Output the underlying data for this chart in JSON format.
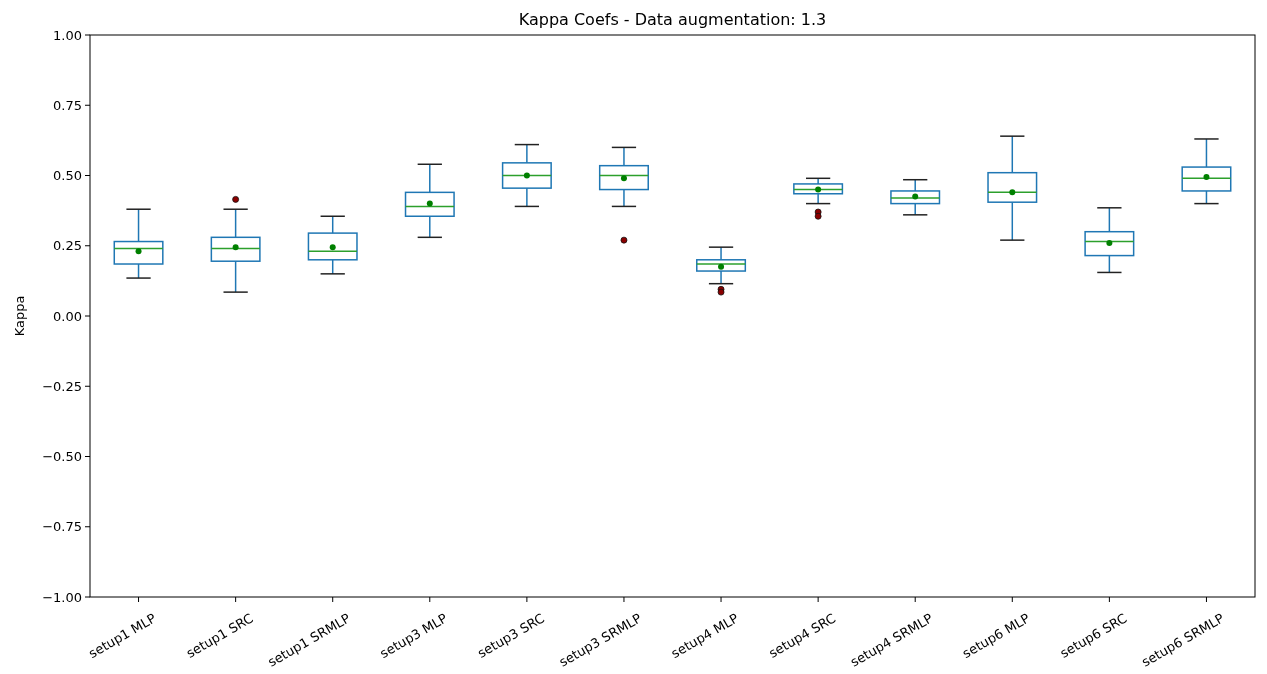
{
  "chart_data": {
    "type": "box",
    "title": "Kappa Coefs - Data augmentation: 1.3",
    "ylabel": "Kappa",
    "color": "#1f77b4",
    "categories": [
      "setup1 MLP",
      "setup1 SRC",
      "setup1 SRMLP",
      "setup3 MLP",
      "setup3 SRC",
      "setup3 SRMLP",
      "setup4 MLP",
      "setup4 SRC",
      "setup4 SRMLP",
      "setup6 MLP",
      "setup6 SRC",
      "setup6 SRMLP"
    ],
    "boxes": [
      {
        "low": 0.135,
        "q1": 0.185,
        "median": 0.24,
        "q3": 0.265,
        "high": 0.38,
        "mean": 0.23
      },
      {
        "low": 0.085,
        "q1": 0.195,
        "median": 0.24,
        "q3": 0.28,
        "high": 0.38,
        "mean": 0.245,
        "outliers": [
          0.415
        ]
      },
      {
        "low": 0.15,
        "q1": 0.2,
        "median": 0.23,
        "q3": 0.295,
        "high": 0.355,
        "mean": 0.245
      },
      {
        "low": 0.28,
        "q1": 0.355,
        "median": 0.39,
        "q3": 0.44,
        "high": 0.54,
        "mean": 0.4
      },
      {
        "low": 0.39,
        "q1": 0.455,
        "median": 0.5,
        "q3": 0.545,
        "high": 0.61,
        "mean": 0.5
      },
      {
        "low": 0.39,
        "q1": 0.45,
        "median": 0.5,
        "q3": 0.535,
        "high": 0.6,
        "mean": 0.49,
        "outliers": [
          0.27
        ]
      },
      {
        "low": 0.115,
        "q1": 0.16,
        "median": 0.185,
        "q3": 0.2,
        "high": 0.245,
        "mean": 0.175,
        "outliers": [
          0.095,
          0.085
        ]
      },
      {
        "low": 0.4,
        "q1": 0.435,
        "median": 0.45,
        "q3": 0.47,
        "high": 0.49,
        "mean": 0.45,
        "outliers": [
          0.37,
          0.355
        ]
      },
      {
        "low": 0.36,
        "q1": 0.4,
        "median": 0.42,
        "q3": 0.445,
        "high": 0.485,
        "mean": 0.425
      },
      {
        "low": 0.27,
        "q1": 0.405,
        "median": 0.44,
        "q3": 0.51,
        "high": 0.64,
        "mean": 0.44
      },
      {
        "low": 0.155,
        "q1": 0.215,
        "median": 0.265,
        "q3": 0.3,
        "high": 0.385,
        "mean": 0.26
      },
      {
        "low": 0.4,
        "q1": 0.445,
        "median": 0.49,
        "q3": 0.53,
        "high": 0.63,
        "mean": 0.495
      }
    ],
    "ylim": [
      -1,
      1
    ],
    "yticks": [
      {
        "value": -1,
        "label": "−1.00"
      },
      {
        "value": -0.75,
        "label": "−0.75"
      },
      {
        "value": -0.5,
        "label": "−0.50"
      },
      {
        "value": -0.25,
        "label": "−0.25"
      },
      {
        "value": 0,
        "label": "0.00"
      },
      {
        "value": 0.25,
        "label": "0.25"
      },
      {
        "value": 0.5,
        "label": "0.50"
      },
      {
        "value": 0.75,
        "label": "0.75"
      },
      {
        "value": 1,
        "label": "1.00"
      }
    ]
  }
}
